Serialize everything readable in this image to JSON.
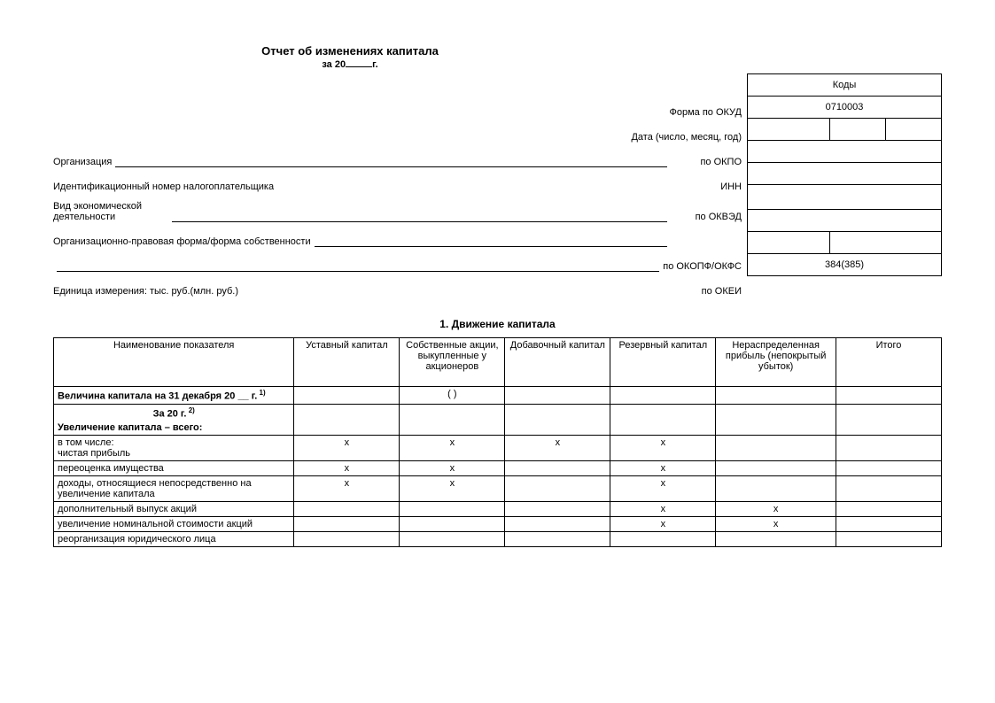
{
  "title": "Отчет об изменениях капитала",
  "subtitle_prefix": "за 20",
  "subtitle_suffix": "г.",
  "codes_header": "Коды",
  "header_rows": [
    {
      "label_left": "",
      "code_label": "Форма по ОКУД",
      "cells": [
        "0710003"
      ]
    },
    {
      "label_left": "",
      "code_label": "Дата (число, месяц, год)",
      "cells": [
        "",
        "",
        ""
      ]
    },
    {
      "label_left": "Организация",
      "has_line": true,
      "code_label": "по ОКПО",
      "cells": [
        ""
      ]
    },
    {
      "label_left": "Идентификационный номер налогоплательщика",
      "code_label": "ИНН",
      "cells": [
        ""
      ]
    },
    {
      "label_left": "Вид экономической деятельности",
      "has_line": true,
      "two_line": true,
      "code_label": "по ОКВЭД",
      "cells": [
        ""
      ]
    },
    {
      "label_left": "Организационно-правовая форма/форма собственности",
      "has_line": true,
      "code_label": "",
      "cells": null
    },
    {
      "label_left": "",
      "has_line": true,
      "code_label": "по ОКОПФ/ОКФС",
      "cells": [
        "",
        ""
      ]
    },
    {
      "label_left": "Единица измерения: тыс. руб.(млн. руб.)",
      "code_label": "по ОКЕИ",
      "cells": [
        "384(385)"
      ]
    }
  ],
  "section_title": "1. Движение капитала",
  "columns": [
    "Наименование показателя",
    "Уставный капитал",
    "Собственные акции, выкупленные у акционеров",
    "Добавочный капитал",
    "Резервный капитал",
    "Нераспределенная прибыль (непокрытый убыток)",
    "Итого"
  ],
  "col_widths": [
    "260px",
    "114px",
    "114px",
    "114px",
    "114px",
    "130px",
    "114px"
  ],
  "rows": [
    {
      "label": "Величина капитала на 31 декабря 20 __ г.",
      "sup": "1)",
      "bold": true,
      "cells": [
        "",
        "(   )",
        "",
        "",
        "",
        ""
      ]
    },
    {
      "label_html": "За 20         г.",
      "sup": "2)",
      "bold": true,
      "center_label": true,
      "no_bottom": true,
      "cells": null
    },
    {
      "label": "Увеличение капитала – всего:",
      "bold": true,
      "no_top": true,
      "cells": [
        "",
        "",
        "",
        "",
        "",
        ""
      ]
    },
    {
      "label": "в том числе:\nчистая прибыль",
      "indent": true,
      "cells": [
        "х",
        "х",
        "х",
        "х",
        "",
        ""
      ]
    },
    {
      "label": "переоценка имущества",
      "indent": true,
      "cells": [
        "х",
        "х",
        "",
        "х",
        "",
        ""
      ]
    },
    {
      "label": "доходы, относящиеся непосредственно на увеличение капитала",
      "indent": true,
      "cells": [
        "х",
        "х",
        "",
        "х",
        "",
        ""
      ]
    },
    {
      "label": "дополнительный выпуск акций",
      "indent": true,
      "cells": [
        "",
        "",
        "",
        "х",
        "х",
        ""
      ]
    },
    {
      "label": "увеличение номинальной стоимости акций",
      "indent": true,
      "cells": [
        "",
        "",
        "",
        "х",
        "х",
        ""
      ]
    },
    {
      "label": "реорганизация юридического лица",
      "indent": true,
      "cells": [
        "",
        "",
        "",
        "",
        "",
        ""
      ]
    }
  ]
}
